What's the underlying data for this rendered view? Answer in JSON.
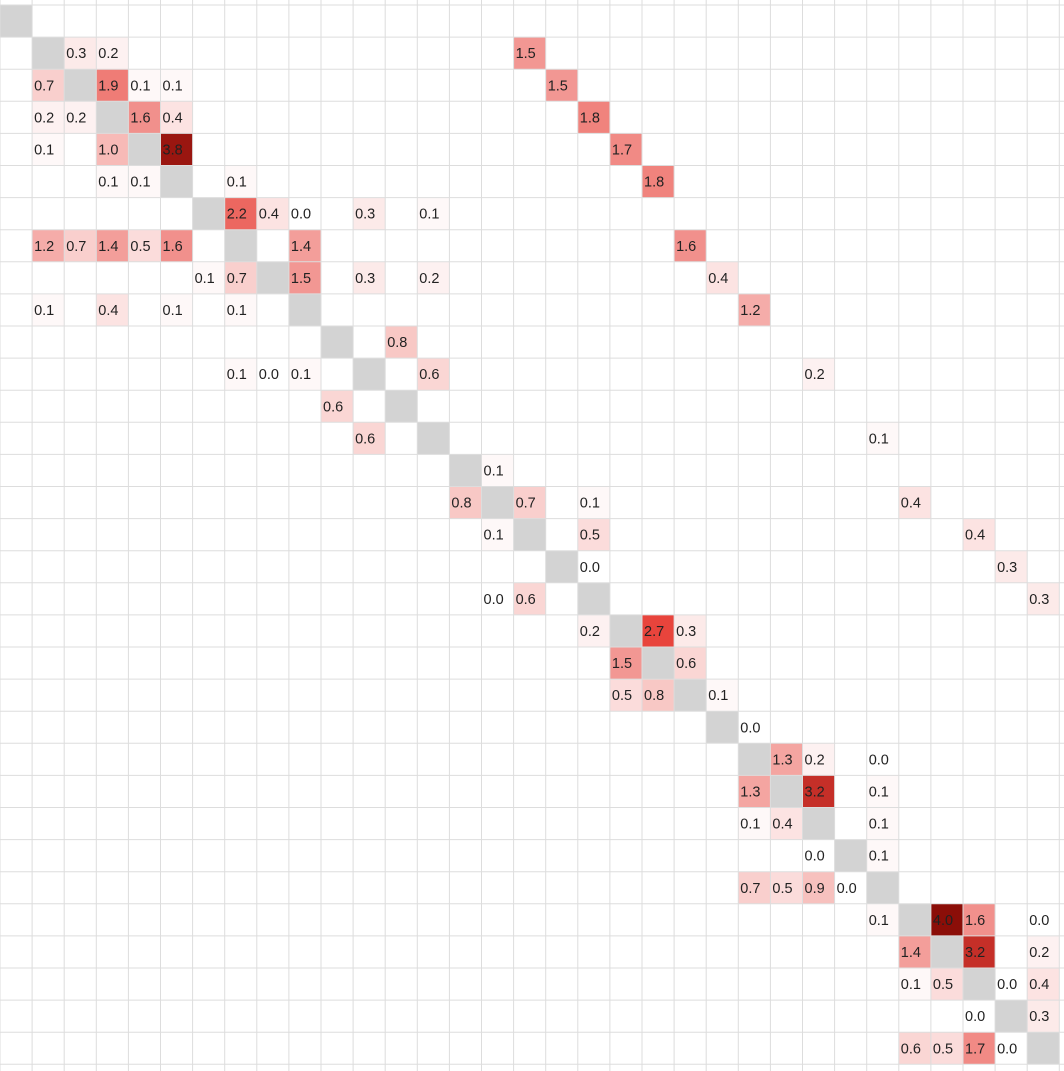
{
  "chart_data": {
    "type": "heatmap",
    "title": "",
    "n": 33,
    "diagonal_color": "#d3d3d3",
    "grid_color": "#dddddd",
    "colorscale": {
      "min": 0.0,
      "max": 4.0,
      "low": "#ffffff",
      "mid": "#e8433b",
      "high": "#8b0e08"
    },
    "cells": [
      {
        "row": 1,
        "col": 2,
        "value": 0.3
      },
      {
        "row": 1,
        "col": 3,
        "value": 0.2
      },
      {
        "row": 1,
        "col": 16,
        "value": 1.5
      },
      {
        "row": 2,
        "col": 1,
        "value": 0.7
      },
      {
        "row": 2,
        "col": 3,
        "value": 1.9
      },
      {
        "row": 2,
        "col": 4,
        "value": 0.1
      },
      {
        "row": 2,
        "col": 5,
        "value": 0.1
      },
      {
        "row": 2,
        "col": 17,
        "value": 1.5
      },
      {
        "row": 3,
        "col": 1,
        "value": 0.2
      },
      {
        "row": 3,
        "col": 2,
        "value": 0.2
      },
      {
        "row": 3,
        "col": 4,
        "value": 1.6
      },
      {
        "row": 3,
        "col": 5,
        "value": 0.4
      },
      {
        "row": 3,
        "col": 18,
        "value": 1.8
      },
      {
        "row": 4,
        "col": 1,
        "value": 0.1
      },
      {
        "row": 4,
        "col": 3,
        "value": 1.0
      },
      {
        "row": 4,
        "col": 5,
        "value": 3.8
      },
      {
        "row": 4,
        "col": 19,
        "value": 1.7
      },
      {
        "row": 5,
        "col": 3,
        "value": 0.1
      },
      {
        "row": 5,
        "col": 4,
        "value": 0.1
      },
      {
        "row": 5,
        "col": 7,
        "value": 0.1
      },
      {
        "row": 5,
        "col": 20,
        "value": 1.8
      },
      {
        "row": 6,
        "col": 7,
        "value": 2.2
      },
      {
        "row": 6,
        "col": 8,
        "value": 0.4
      },
      {
        "row": 6,
        "col": 9,
        "value": 0.0
      },
      {
        "row": 6,
        "col": 11,
        "value": 0.3
      },
      {
        "row": 6,
        "col": 13,
        "value": 0.1
      },
      {
        "row": 7,
        "col": 1,
        "value": 1.2
      },
      {
        "row": 7,
        "col": 2,
        "value": 0.7
      },
      {
        "row": 7,
        "col": 3,
        "value": 1.4
      },
      {
        "row": 7,
        "col": 4,
        "value": 0.5
      },
      {
        "row": 7,
        "col": 5,
        "value": 1.6
      },
      {
        "row": 7,
        "col": 9,
        "value": 1.4
      },
      {
        "row": 7,
        "col": 21,
        "value": 1.6
      },
      {
        "row": 8,
        "col": 6,
        "value": 0.1
      },
      {
        "row": 8,
        "col": 7,
        "value": 0.7
      },
      {
        "row": 8,
        "col": 9,
        "value": 1.5
      },
      {
        "row": 8,
        "col": 11,
        "value": 0.3
      },
      {
        "row": 8,
        "col": 13,
        "value": 0.2
      },
      {
        "row": 8,
        "col": 22,
        "value": 0.4
      },
      {
        "row": 9,
        "col": 1,
        "value": 0.1
      },
      {
        "row": 9,
        "col": 3,
        "value": 0.4
      },
      {
        "row": 9,
        "col": 5,
        "value": 0.1
      },
      {
        "row": 9,
        "col": 7,
        "value": 0.1
      },
      {
        "row": 9,
        "col": 23,
        "value": 1.2
      },
      {
        "row": 10,
        "col": 12,
        "value": 0.8
      },
      {
        "row": 11,
        "col": 7,
        "value": 0.1
      },
      {
        "row": 11,
        "col": 8,
        "value": 0.0
      },
      {
        "row": 11,
        "col": 9,
        "value": 0.1
      },
      {
        "row": 11,
        "col": 13,
        "value": 0.6
      },
      {
        "row": 11,
        "col": 25,
        "value": 0.2
      },
      {
        "row": 12,
        "col": 10,
        "value": 0.6
      },
      {
        "row": 13,
        "col": 11,
        "value": 0.6
      },
      {
        "row": 13,
        "col": 27,
        "value": 0.1
      },
      {
        "row": 14,
        "col": 15,
        "value": 0.1
      },
      {
        "row": 15,
        "col": 14,
        "value": 0.8
      },
      {
        "row": 15,
        "col": 16,
        "value": 0.7
      },
      {
        "row": 15,
        "col": 18,
        "value": 0.1
      },
      {
        "row": 15,
        "col": 28,
        "value": 0.4
      },
      {
        "row": 16,
        "col": 15,
        "value": 0.1
      },
      {
        "row": 16,
        "col": 18,
        "value": 0.5
      },
      {
        "row": 16,
        "col": 30,
        "value": 0.4
      },
      {
        "row": 17,
        "col": 18,
        "value": 0.0
      },
      {
        "row": 17,
        "col": 31,
        "value": 0.3
      },
      {
        "row": 18,
        "col": 15,
        "value": 0.0
      },
      {
        "row": 18,
        "col": 16,
        "value": 0.6
      },
      {
        "row": 18,
        "col": 32,
        "value": 0.3
      },
      {
        "row": 19,
        "col": 18,
        "value": 0.2
      },
      {
        "row": 19,
        "col": 20,
        "value": 2.7
      },
      {
        "row": 19,
        "col": 21,
        "value": 0.3
      },
      {
        "row": 20,
        "col": 19,
        "value": 1.5
      },
      {
        "row": 20,
        "col": 21,
        "value": 0.6
      },
      {
        "row": 21,
        "col": 19,
        "value": 0.5
      },
      {
        "row": 21,
        "col": 20,
        "value": 0.8
      },
      {
        "row": 21,
        "col": 22,
        "value": 0.1
      },
      {
        "row": 22,
        "col": 23,
        "value": 0.0
      },
      {
        "row": 23,
        "col": 24,
        "value": 1.3
      },
      {
        "row": 23,
        "col": 25,
        "value": 0.2
      },
      {
        "row": 23,
        "col": 27,
        "value": 0.0
      },
      {
        "row": 24,
        "col": 23,
        "value": 1.3
      },
      {
        "row": 24,
        "col": 25,
        "value": 3.2
      },
      {
        "row": 24,
        "col": 27,
        "value": 0.1
      },
      {
        "row": 25,
        "col": 23,
        "value": 0.1
      },
      {
        "row": 25,
        "col": 24,
        "value": 0.4
      },
      {
        "row": 25,
        "col": 27,
        "value": 0.1
      },
      {
        "row": 26,
        "col": 25,
        "value": 0.0
      },
      {
        "row": 26,
        "col": 27,
        "value": 0.1
      },
      {
        "row": 27,
        "col": 23,
        "value": 0.7
      },
      {
        "row": 27,
        "col": 24,
        "value": 0.5
      },
      {
        "row": 27,
        "col": 25,
        "value": 0.9
      },
      {
        "row": 27,
        "col": 26,
        "value": 0.0
      },
      {
        "row": 28,
        "col": 27,
        "value": 0.1
      },
      {
        "row": 28,
        "col": 29,
        "value": 4.0
      },
      {
        "row": 28,
        "col": 30,
        "value": 1.6
      },
      {
        "row": 28,
        "col": 32,
        "value": 0.0
      },
      {
        "row": 29,
        "col": 28,
        "value": 1.4
      },
      {
        "row": 29,
        "col": 30,
        "value": 3.2
      },
      {
        "row": 29,
        "col": 32,
        "value": 0.2
      },
      {
        "row": 30,
        "col": 28,
        "value": 0.1
      },
      {
        "row": 30,
        "col": 29,
        "value": 0.5
      },
      {
        "row": 30,
        "col": 31,
        "value": 0.0
      },
      {
        "row": 30,
        "col": 32,
        "value": 0.4
      },
      {
        "row": 31,
        "col": 30,
        "value": 0.0
      },
      {
        "row": 31,
        "col": 32,
        "value": 0.3
      },
      {
        "row": 32,
        "col": 28,
        "value": 0.6
      },
      {
        "row": 32,
        "col": 29,
        "value": 0.5
      },
      {
        "row": 32,
        "col": 30,
        "value": 1.7
      },
      {
        "row": 32,
        "col": 31,
        "value": 0.0
      }
    ]
  }
}
